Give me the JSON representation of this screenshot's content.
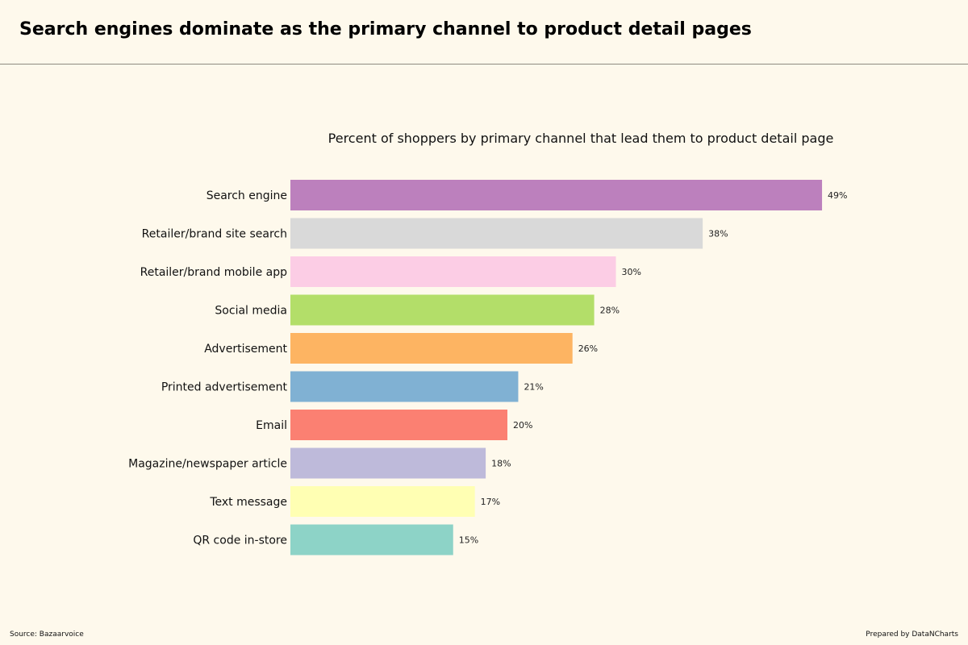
{
  "header": {
    "title": "Search engines dominate as the primary channel to product detail pages"
  },
  "footer": {
    "source": "Source: Bazaarvoice",
    "credit": "Prepared by DataNCharts"
  },
  "chart_data": {
    "type": "bar",
    "orientation": "horizontal",
    "title": "Percent of shoppers by primary channel that lead them to product detail page",
    "xlabel": "",
    "ylabel": "",
    "xlim": [
      0,
      52
    ],
    "grid": false,
    "value_suffix": "%",
    "categories": [
      "Search engine",
      "Retailer/brand site search",
      "Retailer/brand mobile app",
      "Social media",
      "Advertisement",
      "Printed advertisement",
      "Email",
      "Magazine/newspaper article",
      "Text message",
      "QR code in-store"
    ],
    "values": [
      49,
      38,
      30,
      28,
      26,
      21,
      20,
      18,
      17,
      15
    ],
    "colors": [
      "#bc80bd",
      "#d9d9d9",
      "#fccde5",
      "#b3de69",
      "#fdb462",
      "#80b1d3",
      "#fb8072",
      "#bebada",
      "#ffffb3",
      "#8dd3c7"
    ]
  }
}
